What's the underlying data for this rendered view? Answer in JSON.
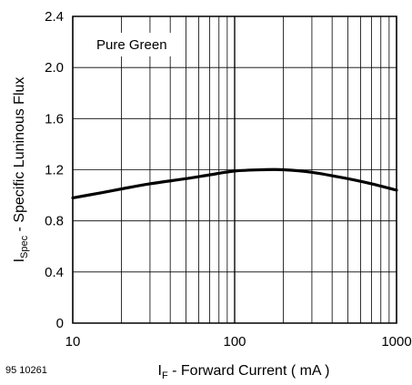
{
  "chart_data": {
    "type": "line",
    "x_scale": "log",
    "xlim": [
      10,
      1000
    ],
    "ylim": [
      0,
      2.4
    ],
    "x_tick_labels": [
      "10",
      "100",
      "1000"
    ],
    "y_ticks": [
      0,
      0.4,
      0.8,
      1.2,
      1.6,
      2.0,
      2.4
    ],
    "y_tick_labels": [
      "0",
      "0.4",
      "0.8",
      "1.2",
      "1.6",
      "2.0",
      "2.4"
    ],
    "grid": true,
    "ylabel_main": "I",
    "ylabel_sub": "Spec",
    "ylabel_rest": " - Specific Luninous Flux",
    "xlabel_main": "I",
    "xlabel_sub": "F",
    "xlabel_rest": "  - Forward Current ( mA )",
    "legend_label": "Pure Green",
    "figure_code": "95 10261",
    "series": [
      {
        "x": [
          10,
          15,
          20,
          30,
          50,
          70,
          100,
          150,
          200,
          300,
          500,
          700,
          1000
        ],
        "y": [
          0.98,
          1.02,
          1.05,
          1.09,
          1.13,
          1.16,
          1.19,
          1.2,
          1.2,
          1.18,
          1.13,
          1.09,
          1.04
        ]
      }
    ],
    "line_color": "#000000"
  }
}
